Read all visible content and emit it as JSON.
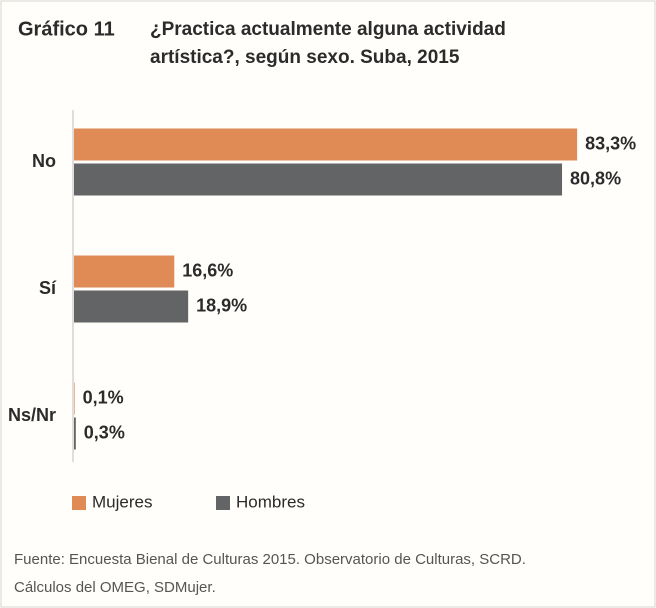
{
  "chart_data": {
    "type": "hbar",
    "label": "Gráfico 11",
    "title": [
      "¿Practica actualmente alguna actividad",
      "artística?, según sexo. Suba, 2015"
    ],
    "categories": [
      "No",
      "Sí",
      "Ns/Nr"
    ],
    "series": [
      {
        "name": "Mujeres",
        "color": "#e08a55",
        "values": [
          83.3,
          16.6,
          0.1
        ],
        "value_labels": [
          "83,3%",
          "16,6%",
          "0,1%"
        ]
      },
      {
        "name": "Hombres",
        "color": "#636466",
        "values": [
          80.8,
          18.9,
          0.3
        ],
        "value_labels": [
          "80,8%",
          "18,9%",
          "0,3%"
        ]
      }
    ],
    "source": [
      "Fuente: Encuesta Bienal de Culturas 2015. Observatorio de Culturas, SCRD.",
      "Cálculos del OMEG, SDMujer."
    ]
  }
}
